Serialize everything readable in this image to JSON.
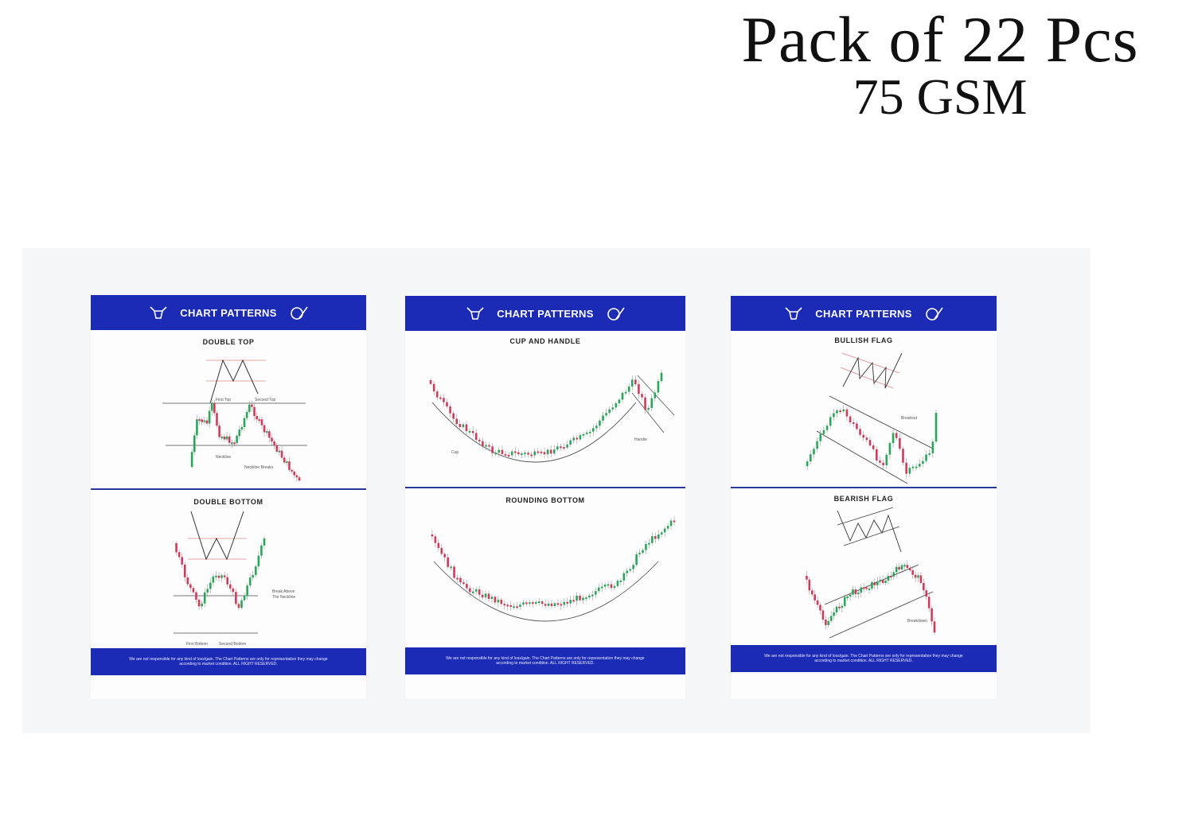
{
  "headline": {
    "line1": "Pack of 22 Pcs",
    "line2": "75 GSM"
  },
  "posters": [
    {
      "header": "CHART PATTERNS",
      "sections": [
        {
          "title": "DOUBLE TOP",
          "labels": [
            "First Top",
            "Second Top",
            "Neckline",
            "Neckline Breaks"
          ]
        },
        {
          "title": "DOUBLE BOTTOM",
          "labels": [
            "Break Above",
            "The Neckline",
            "First Bottom",
            "Second Bottom"
          ]
        }
      ],
      "footer": "We are not responsible for any kind of loss/gain. The Chart Patterns are only for representation they may change according to market condition. ALL RIGHT RESERVED."
    },
    {
      "header": "CHART PATTERNS",
      "sections": [
        {
          "title": "CUP AND HANDLE",
          "labels": [
            "Cup",
            "Handle"
          ]
        },
        {
          "title": "ROUNDING BOTTOM",
          "labels": []
        }
      ],
      "footer": "We are not responsible for any kind of loss/gain. The Chart Patterns are only for representation they may change according to market condition. ALL RIGHT RESERVED."
    },
    {
      "header": "CHART PATTERNS",
      "sections": [
        {
          "title": "BULLISH FLAG",
          "labels": [
            "Breakout"
          ]
        },
        {
          "title": "BEARISH FLAG",
          "labels": [
            "Breakdown"
          ]
        }
      ],
      "footer": "We are not responsible for any kind of loss/gain. The Chart Patterns are only for representation they may change according to market condition. ALL RIGHT RESERVED."
    }
  ],
  "colors": {
    "header_blue": "#1c2bb5",
    "bull": "#2aa65a",
    "bear": "#d23a5a"
  },
  "icons": [
    "bull-logo-icon",
    "bear-logo-icon"
  ]
}
